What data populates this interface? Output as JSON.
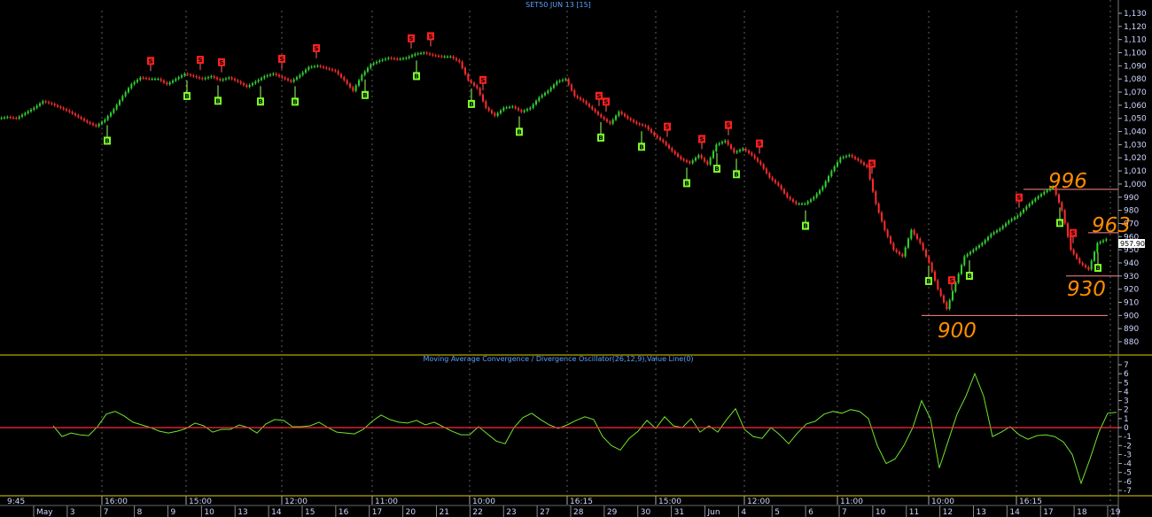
{
  "app": {
    "title": "SET50 JUN 13   [15]",
    "macd_title": "Moving Average Convergence / Divergence Oscillator(26,12,9),Value Line(0)",
    "current_price_label": "957.90"
  },
  "colors": {
    "background": "#000000",
    "up_candle": "#2fd12f",
    "down_candle": "#ff2a2a",
    "macd_line": "#6ee62e",
    "zero_line": "#ff2a3a",
    "price_annotation": "#ff8c00",
    "level_line": "#ff8a8a",
    "buy_marker": "#7cff2a",
    "sell_marker": "#ff2020",
    "axis_text": "#cfd7ff",
    "divider": "#e0d000"
  },
  "axes": {
    "price_ticks": [
      "1,130",
      "1,120",
      "1,110",
      "1,100",
      "1,090",
      "1,080",
      "1,070",
      "1,060",
      "1,050",
      "1,040",
      "1,030",
      "1,020",
      "1,010",
      "1,000",
      "990",
      "980",
      "970",
      "960",
      "950",
      "940",
      "930",
      "920",
      "910",
      "900",
      "890",
      "880"
    ],
    "macd_ticks": [
      "7",
      "6",
      "5",
      "4",
      "3",
      "2",
      "1",
      "0",
      "-1",
      "-2",
      "-3",
      "-4",
      "-5",
      "-6",
      "-7"
    ],
    "time_labels": [
      "9:45",
      "16:00",
      "15:00",
      "12:00",
      "11:00",
      "10:00",
      "16:15",
      "15:00",
      "12:00",
      "11:00",
      "10:00",
      "16:15"
    ],
    "date_labels": [
      "May",
      "3",
      "7",
      "8",
      "9",
      "10",
      "13",
      "14",
      "15",
      "16",
      "17",
      "20",
      "21",
      "22",
      "23",
      "27",
      "28",
      "29",
      "30",
      "31",
      "Jun",
      "4",
      "5",
      "6",
      "7",
      "10",
      "11",
      "12",
      "13",
      "14",
      "17",
      "18",
      "19"
    ]
  },
  "annotations": {
    "levels": [
      "996",
      "963",
      "930",
      "900"
    ]
  },
  "chart_data": [
    {
      "type": "line",
      "title": "SET50 JUN 13   [15]",
      "xlabel": "",
      "ylabel": "",
      "ylim": [
        878,
        1132
      ],
      "x": [
        0,
        10,
        20,
        30,
        40,
        50,
        60,
        70,
        80,
        90,
        100,
        110,
        120,
        130,
        140,
        150,
        160,
        170,
        180,
        190,
        200,
        210,
        220,
        230,
        240,
        250,
        260,
        270,
        280,
        290,
        300,
        310,
        320,
        330,
        340,
        350,
        360,
        370,
        380,
        390,
        400,
        410,
        420,
        430,
        440,
        450,
        460,
        470,
        480,
        490,
        500,
        510,
        520,
        530,
        540,
        550,
        560,
        570,
        580,
        590,
        600,
        610,
        620,
        630,
        640,
        650,
        660,
        670,
        680,
        690,
        700,
        710,
        720,
        730,
        740,
        750,
        760,
        770,
        780,
        790,
        800,
        810,
        820,
        830,
        840,
        850,
        860,
        870,
        880,
        890,
        900,
        910,
        920,
        930,
        940,
        950,
        960,
        970,
        980,
        990,
        1000,
        1010,
        1020,
        1030,
        1040,
        1050,
        1060,
        1070,
        1080,
        1090,
        1100,
        1110,
        1120,
        1130,
        1140,
        1150,
        1160,
        1170,
        1180,
        1190,
        1200,
        1210,
        1220,
        1230,
        1240,
        1250
      ],
      "series": [
        {
          "values": [
            1050,
            1051,
            1050,
            1054,
            1058,
            1063,
            1061,
            1058,
            1055,
            1051,
            1047,
            1044,
            1049,
            1057,
            1067,
            1076,
            1081,
            1080,
            1080,
            1076,
            1080,
            1084,
            1082,
            1080,
            1082,
            1079,
            1081,
            1078,
            1074,
            1078,
            1082,
            1084,
            1081,
            1078,
            1083,
            1089,
            1090,
            1088,
            1086,
            1079,
            1071,
            1083,
            1091,
            1094,
            1096,
            1095,
            1096,
            1099,
            1100,
            1098,
            1097,
            1097,
            1093,
            1079,
            1073,
            1058,
            1052,
            1058,
            1059,
            1055,
            1058,
            1066,
            1071,
            1078,
            1080,
            1067,
            1063,
            1057,
            1051,
            1046,
            1055,
            1050,
            1046,
            1044,
            1037,
            1032,
            1025,
            1019,
            1016,
            1022,
            1015,
            1030,
            1033,
            1024,
            1027,
            1022,
            1015,
            1005,
            999,
            990,
            985,
            985,
            990,
            998,
            1010,
            1020,
            1022,
            1018,
            1013,
            985,
            965,
            950,
            945,
            965,
            955,
            940,
            920,
            905,
            925,
            945,
            950,
            955,
            962,
            966,
            972,
            976,
            983,
            989,
            994,
            998,
            980,
            950,
            940,
            935,
            955,
            958
          ]
        }
      ],
      "signals": {
        "sell_x": [
          170,
          226,
          250,
          318,
          357,
          464,
          486,
          545,
          676,
          684,
          753,
          792,
          822,
          857,
          984,
          1074,
          1150,
          1211
        ],
        "buy_x": [
          121,
          211,
          246,
          294,
          333,
          412,
          470,
          532,
          586,
          678,
          724,
          775,
          809,
          831,
          909,
          1048,
          1094,
          1196,
          1239
        ]
      }
    },
    {
      "type": "line",
      "title": "Moving Average Convergence / Divergence Oscillator(26,12,9),Value Line(0)",
      "xlabel": "",
      "ylabel": "",
      "ylim": [
        -7.5,
        7.5
      ],
      "x": [
        60,
        70,
        80,
        90,
        100,
        110,
        120,
        130,
        140,
        150,
        160,
        170,
        180,
        190,
        200,
        210,
        220,
        230,
        240,
        250,
        260,
        270,
        280,
        290,
        300,
        310,
        320,
        330,
        340,
        350,
        360,
        370,
        380,
        390,
        400,
        410,
        420,
        430,
        440,
        450,
        460,
        470,
        480,
        490,
        500,
        510,
        520,
        530,
        540,
        550,
        560,
        570,
        580,
        590,
        600,
        610,
        620,
        630,
        640,
        650,
        660,
        670,
        680,
        690,
        700,
        710,
        720,
        730,
        740,
        750,
        760,
        770,
        780,
        790,
        800,
        810,
        820,
        830,
        840,
        850,
        860,
        870,
        880,
        890,
        900,
        910,
        920,
        930,
        940,
        950,
        960,
        970,
        980,
        990,
        1000,
        1010,
        1020,
        1030,
        1040,
        1050,
        1060,
        1070,
        1080,
        1090,
        1100,
        1110,
        1120,
        1130,
        1140,
        1150,
        1160,
        1170,
        1180,
        1190,
        1200,
        1210,
        1220,
        1230,
        1240,
        1250,
        1260
      ],
      "series": [
        {
          "values": [
            0.2,
            -1.0,
            -0.6,
            -0.8,
            -0.9,
            0.1,
            1.5,
            1.8,
            1.3,
            0.6,
            0.3,
            0.0,
            -0.4,
            -0.6,
            -0.4,
            -0.1,
            0.5,
            0.2,
            -0.5,
            -0.2,
            -0.2,
            0.3,
            0.0,
            -0.6,
            0.4,
            0.9,
            0.8,
            0.1,
            0.1,
            0.2,
            0.6,
            0.0,
            -0.5,
            -0.6,
            -0.7,
            -0.2,
            0.7,
            1.4,
            0.9,
            0.6,
            0.5,
            0.8,
            0.3,
            0.6,
            0.1,
            -0.4,
            -0.8,
            -0.8,
            0.1,
            -0.7,
            -1.5,
            -1.8,
            0.0,
            1.1,
            1.6,
            0.9,
            0.3,
            -0.1,
            0.3,
            0.8,
            1.2,
            0.9,
            -1.0,
            -2.0,
            -2.5,
            -1.2,
            -0.4,
            0.8,
            -0.1,
            1.2,
            0.2,
            0.0,
            1.0,
            -0.5,
            0.2,
            -0.5,
            0.9,
            2.1,
            -0.2,
            -1.0,
            -1.2,
            0.0,
            -0.8,
            -1.8,
            -0.6,
            0.4,
            0.7,
            1.5,
            1.8,
            1.6,
            2.0,
            1.8,
            1.0,
            -2.0,
            -4.0,
            -3.5,
            -2.0,
            0.0,
            3.0,
            1.0,
            -4.5,
            -1.5,
            1.5,
            3.5,
            6.0,
            3.5,
            -1.0,
            -0.5,
            0.1,
            -0.8,
            -1.3,
            -0.9,
            -0.8,
            -1.0,
            -1.6,
            -3.0,
            -6.2,
            -3.5,
            -0.5,
            1.6,
            1.7
          ]
        }
      ]
    }
  ]
}
